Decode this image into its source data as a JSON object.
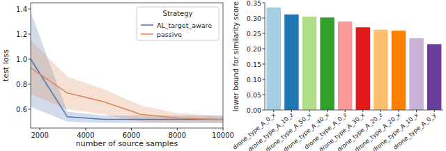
{
  "chart_data": [
    {
      "type": "line",
      "x_label": "number of source samples",
      "y_label": "test loss",
      "x": [
        1600,
        3200,
        4800,
        6400,
        8000,
        9600,
        10000
      ],
      "series": [
        {
          "name": "AL_target_aware",
          "color": "#4c72b0",
          "values": [
            1.0,
            0.54,
            0.52,
            0.52,
            0.52,
            0.52,
            0.52
          ],
          "lower": [
            0.62,
            0.5,
            0.49,
            0.49,
            0.49,
            0.49,
            0.49
          ],
          "upper": [
            1.38,
            0.58,
            0.55,
            0.55,
            0.55,
            0.55,
            0.55
          ]
        },
        {
          "name": "passive",
          "color": "#dd8452",
          "values": [
            0.93,
            0.73,
            0.66,
            0.56,
            0.53,
            0.52,
            0.52
          ],
          "lower": [
            0.72,
            0.6,
            0.56,
            0.5,
            0.49,
            0.49,
            0.49
          ],
          "upper": [
            1.15,
            0.86,
            0.76,
            0.63,
            0.57,
            0.55,
            0.55
          ]
        }
      ],
      "xlim": [
        1600,
        10000
      ],
      "xticks": [
        2000,
        4000,
        6000,
        8000,
        10000
      ],
      "ylim": [
        0.45,
        1.45
      ],
      "yticks": [
        {
          "value": 0.6,
          "label": "0.6"
        },
        {
          "value": 0.8,
          "label": "0.8"
        },
        {
          "value": 1.0,
          "label": "1.0"
        },
        {
          "value": 1.2,
          "label": "1.2"
        },
        {
          "value": 1.4,
          "label": "1.4"
        }
      ],
      "legend": "upper right",
      "legend_title": "Strategy",
      "grid": false
    },
    {
      "type": "bar",
      "y_label": "lower bound for similarity score",
      "categories": [
        "drone_type_A_0_x",
        "drone_type_A_10_z",
        "drone_type_A_50_x",
        "drone_type_A_40_x",
        "drone_type_A_0_z",
        "drone_type_A_30_x",
        "drone_type_A_20_z",
        "drone_type_A_20_x",
        "drone_type_A_10_x",
        "drone_type_A_0_y"
      ],
      "values": [
        0.335,
        0.312,
        0.305,
        0.302,
        0.289,
        0.27,
        0.262,
        0.259,
        0.234,
        0.215
      ],
      "colors": [
        "#a6cee3",
        "#1f78b4",
        "#b2df8a",
        "#33a02c",
        "#fb9a99",
        "#e31a1c",
        "#fdbf6f",
        "#ff7f00",
        "#cab2d6",
        "#6a3d9a"
      ],
      "ylim": [
        0,
        0.35
      ],
      "yticks": [
        {
          "value": 0,
          "label": "0.00"
        },
        {
          "value": 0.05,
          "label": "0.05"
        },
        {
          "value": 0.1,
          "label": "0.10"
        },
        {
          "value": 0.15,
          "label": "0.15"
        },
        {
          "value": 0.2,
          "label": "0.20"
        },
        {
          "value": 0.25,
          "label": "0.25"
        },
        {
          "value": 0.3,
          "label": "0.30"
        },
        {
          "value": 0.35,
          "label": "0.35"
        }
      ],
      "grid": false
    }
  ]
}
